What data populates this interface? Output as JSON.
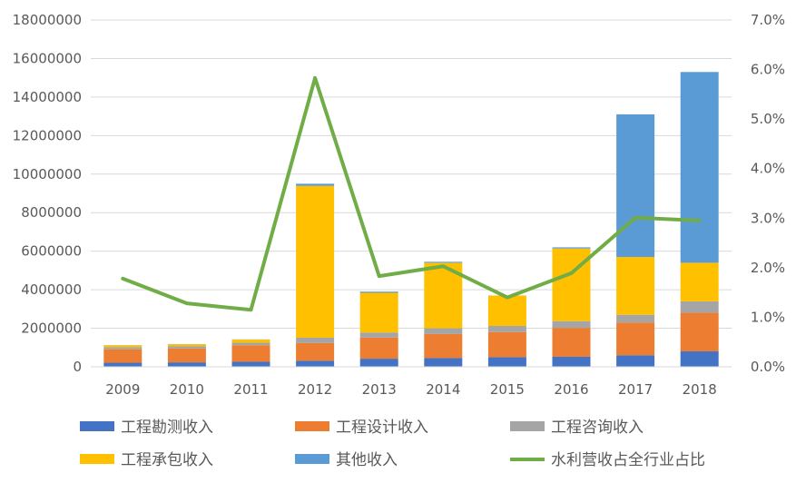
{
  "chart_data": {
    "type": "bar",
    "stacked": true,
    "categories": [
      "2009",
      "2010",
      "2011",
      "2012",
      "2013",
      "2014",
      "2015",
      "2016",
      "2017",
      "2018"
    ],
    "series": [
      {
        "name": "工程勘测收入",
        "color": "#4472C4",
        "values": [
          210000,
          230000,
          260000,
          310000,
          420000,
          450000,
          500000,
          520000,
          600000,
          800000
        ]
      },
      {
        "name": "工程设计收入",
        "color": "#ED7D31",
        "values": [
          700000,
          720000,
          860000,
          920000,
          1100000,
          1250000,
          1300000,
          1500000,
          1700000,
          2000000
        ]
      },
      {
        "name": "工程咨询收入",
        "color": "#A5A5A5",
        "values": [
          100000,
          110000,
          130000,
          280000,
          260000,
          300000,
          320000,
          350000,
          400000,
          600000
        ]
      },
      {
        "name": "工程承包收入",
        "color": "#FFC000",
        "values": [
          100000,
          110000,
          160000,
          7880000,
          2060000,
          3400000,
          1580000,
          3770000,
          3000000,
          2000000
        ]
      },
      {
        "name": "其他收入",
        "color": "#5B9BD5",
        "values": [
          10000,
          10000,
          10000,
          110000,
          60000,
          50000,
          0,
          60000,
          7400000,
          9900000
        ]
      }
    ],
    "line_series": {
      "name": "水利营收占全行业占比",
      "color": "#70AD47",
      "axis": "right",
      "values": [
        0.0178,
        0.0128,
        0.0115,
        0.0583,
        0.0183,
        0.0203,
        0.014,
        0.0189,
        0.0301,
        0.0295
      ]
    },
    "y_left": {
      "min": 0,
      "max": 18000000,
      "ticks": [
        "0",
        "2000000",
        "4000000",
        "6000000",
        "8000000",
        "10000000",
        "12000000",
        "14000000",
        "16000000",
        "18000000"
      ]
    },
    "y_right": {
      "min": 0,
      "max": 0.07,
      "ticks": [
        "0.0%",
        "1.0%",
        "2.0%",
        "3.0%",
        "4.0%",
        "5.0%",
        "6.0%",
        "7.0%"
      ]
    },
    "grid": true,
    "legend_position": "bottom"
  }
}
